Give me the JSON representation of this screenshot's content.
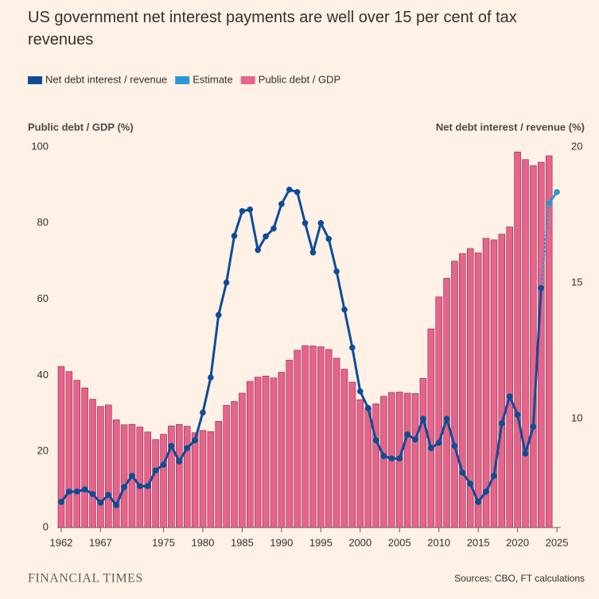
{
  "chart_data": {
    "type": "bar-line",
    "title": "US government net interest payments are well over 15 per cent of tax revenues",
    "y_label": "Public debt / GDP (%)",
    "y2_label": "Net debt interest / revenue (%)",
    "source": "Sources: CBO, FT calculations",
    "brand": "FINANCIAL TIMES",
    "x": [
      1962,
      1963,
      1964,
      1965,
      1966,
      1967,
      1968,
      1969,
      1970,
      1971,
      1972,
      1973,
      1974,
      1975,
      1976,
      1977,
      1978,
      1979,
      1980,
      1981,
      1982,
      1983,
      1984,
      1985,
      1986,
      1987,
      1988,
      1989,
      1990,
      1991,
      1992,
      1993,
      1994,
      1995,
      1996,
      1997,
      1998,
      1999,
      2000,
      2001,
      2002,
      2003,
      2004,
      2005,
      2006,
      2007,
      2008,
      2009,
      2010,
      2011,
      2012,
      2013,
      2014,
      2015,
      2016,
      2017,
      2018,
      2019,
      2020,
      2021,
      2022,
      2023,
      2024,
      2025
    ],
    "xlim": [
      1961.5,
      2025.5
    ],
    "xticks": [
      1962,
      1967,
      1975,
      1980,
      1985,
      1990,
      1995,
      2000,
      2005,
      2010,
      2015,
      2020,
      2025
    ],
    "ylim": [
      0,
      100
    ],
    "yticks": [
      0,
      20,
      40,
      60,
      80,
      100
    ],
    "y2lim": [
      6,
      20
    ],
    "y2ticks": [
      10,
      15,
      20
    ],
    "series": [
      {
        "name": "Net debt interest / revenue",
        "type": "line",
        "axis": "y2",
        "color": "#0f4c97",
        "values": [
          6.94,
          7.32,
          7.32,
          7.4,
          7.23,
          6.91,
          7.2,
          6.82,
          7.49,
          7.9,
          7.52,
          7.52,
          8.1,
          8.31,
          9.0,
          8.43,
          8.92,
          9.21,
          10.23,
          11.52,
          13.82,
          15.01,
          16.73,
          17.64,
          17.7,
          16.21,
          16.71,
          17.0,
          17.9,
          18.43,
          18.34,
          17.2,
          16.12,
          17.2,
          16.62,
          15.42,
          14.02,
          12.62,
          11.01,
          10.4,
          9.21,
          8.63,
          8.54,
          8.54,
          9.42,
          9.24,
          10.0,
          8.92,
          9.12,
          10.0,
          9.0,
          8.02,
          7.61,
          6.94,
          7.32,
          7.9,
          9.83,
          10.82,
          10.15,
          8.72,
          9.71,
          14.81,
          null,
          null
        ]
      },
      {
        "name": "Estimate",
        "type": "line",
        "axis": "y2",
        "color": "#2b98d6",
        "values": [
          null,
          null,
          null,
          null,
          null,
          null,
          null,
          null,
          null,
          null,
          null,
          null,
          null,
          null,
          null,
          null,
          null,
          null,
          null,
          null,
          null,
          null,
          null,
          null,
          null,
          null,
          null,
          null,
          null,
          null,
          null,
          null,
          null,
          null,
          null,
          null,
          null,
          null,
          null,
          null,
          null,
          null,
          null,
          null,
          null,
          null,
          null,
          null,
          null,
          null,
          null,
          null,
          null,
          null,
          null,
          null,
          null,
          null,
          null,
          null,
          null,
          null,
          17.93,
          18.34
        ]
      },
      {
        "name": "Public debt / GDP",
        "type": "bar",
        "color": "#e8638c",
        "values": [
          42.3,
          41.0,
          38.7,
          36.7,
          33.7,
          31.8,
          32.2,
          28.3,
          27.0,
          27.1,
          26.4,
          25.1,
          23.1,
          24.5,
          26.7,
          27.1,
          26.6,
          24.9,
          25.5,
          25.2,
          27.9,
          32.1,
          33.1,
          35.3,
          38.4,
          39.5,
          39.8,
          39.3,
          40.8,
          44.0,
          46.6,
          47.8,
          47.7,
          47.5,
          46.8,
          44.5,
          41.6,
          38.2,
          33.6,
          31.4,
          32.5,
          34.5,
          35.5,
          35.6,
          35.3,
          35.2,
          39.2,
          52.2,
          60.6,
          65.5,
          70.0,
          72.0,
          73.3,
          72.2,
          76.0,
          75.6,
          77.1,
          79.0,
          98.7,
          96.7,
          95.1,
          96.0,
          97.7,
          null
        ]
      }
    ]
  }
}
